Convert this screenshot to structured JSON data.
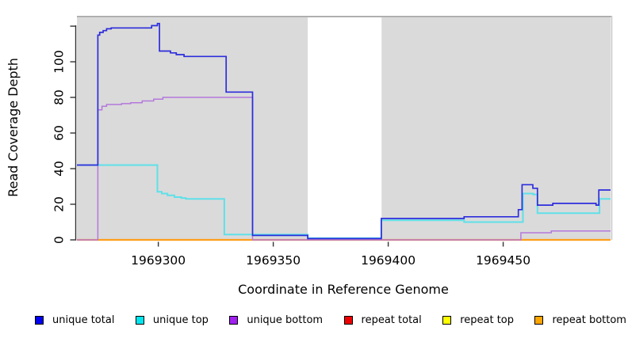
{
  "figure": {
    "xlabel": "Coordinate in Reference Genome",
    "ylabel": "Read Coverage Depth"
  },
  "legend": {
    "items": [
      {
        "label": "unique total",
        "color": "#0000EE"
      },
      {
        "label": "unique top",
        "color": "#00E5EE"
      },
      {
        "label": "unique bottom",
        "color": "#A020F0"
      },
      {
        "label": "repeat total",
        "color": "#EE0000"
      },
      {
        "label": "repeat top",
        "color": "#FFFF00"
      },
      {
        "label": "repeat bottom",
        "color": "#FFA500"
      }
    ]
  },
  "chart_data": {
    "type": "line",
    "subtype": "step-after-coverage",
    "title": "",
    "xlabel": "Coordinate in Reference Genome",
    "ylabel": "Read Coverage Depth",
    "x_axis": {
      "range": [
        1969264.6,
        1969496.7
      ],
      "ticks": [
        1969300,
        1969350,
        1969400,
        1969450
      ]
    },
    "y_axis": {
      "range": [
        0,
        125.8
      ],
      "ticks": [
        0,
        20,
        40,
        60,
        80,
        100,
        120
      ],
      "tick_labels": [
        "0",
        "20",
        "40",
        "60",
        "80",
        "100",
        ""
      ]
    },
    "background": {
      "plot_bg": "#DADADA",
      "plot_bg_top_edge": "#A6A6A6",
      "covered_region": [
        1969264.6,
        1969496.7
      ],
      "gap_region": [
        1969365.0,
        1969397.1
      ],
      "gap_color": "#FFFFFF"
    },
    "series": [
      {
        "name": "repeat total",
        "color": "#E02020",
        "width": 1.5,
        "points": [
          [
            1969264.6,
            0
          ],
          [
            1969496.7,
            0
          ]
        ]
      },
      {
        "name": "repeat top",
        "color": "#F5E800",
        "width": 1.5,
        "points": [
          [
            1969264.6,
            0
          ],
          [
            1969496.7,
            0
          ]
        ]
      },
      {
        "name": "repeat bottom",
        "color": "#FF9F1A",
        "width": 2.2,
        "points": [
          [
            1969264.6,
            0
          ],
          [
            1969496.7,
            0
          ]
        ]
      },
      {
        "name": "unique bottom",
        "color": "#B478DC",
        "width": 1.5,
        "points": [
          [
            1969264.6,
            0
          ],
          [
            1969273.7,
            73
          ],
          [
            1969275.5,
            75
          ],
          [
            1969277.5,
            76
          ],
          [
            1969284,
            76.5
          ],
          [
            1969288,
            77
          ],
          [
            1969293,
            78
          ],
          [
            1969298,
            79
          ],
          [
            1969302,
            80
          ],
          [
            1969341,
            0
          ],
          [
            1969457.7,
            4
          ],
          [
            1969470.9,
            5
          ],
          [
            1969496.7,
            5
          ]
        ]
      },
      {
        "name": "unique top",
        "color": "#5FE0E8",
        "width": 2.0,
        "points": [
          [
            1969264.6,
            42
          ],
          [
            1969299.6,
            27
          ],
          [
            1969301.5,
            26
          ],
          [
            1969304,
            25
          ],
          [
            1969307,
            24
          ],
          [
            1969310,
            23.5
          ],
          [
            1969312,
            23
          ],
          [
            1969328.7,
            3
          ],
          [
            1969365,
            1
          ],
          [
            1969397,
            11
          ],
          [
            1969433,
            10
          ],
          [
            1969458.6,
            26
          ],
          [
            1969463,
            25.5
          ],
          [
            1969464.9,
            15
          ],
          [
            1969491.9,
            23
          ],
          [
            1969496.7,
            23
          ]
        ]
      },
      {
        "name": "unique total",
        "color": "#2D2DDC",
        "width": 1.7,
        "points": [
          [
            1969264.6,
            42
          ],
          [
            1969273.7,
            115
          ],
          [
            1969274.5,
            116.5
          ],
          [
            1969276,
            117.5
          ],
          [
            1969277.5,
            118.5
          ],
          [
            1969279.5,
            119
          ],
          [
            1969297.1,
            120.3
          ],
          [
            1969299.6,
            121.5
          ],
          [
            1969300.5,
            106
          ],
          [
            1969305.3,
            105
          ],
          [
            1969307.8,
            104
          ],
          [
            1969311.2,
            103
          ],
          [
            1969329.5,
            83
          ],
          [
            1969341,
            2.5
          ],
          [
            1969365,
            0.7
          ],
          [
            1969397,
            12
          ],
          [
            1969433,
            13
          ],
          [
            1969456.6,
            17
          ],
          [
            1969458.2,
            31
          ],
          [
            1969462.9,
            29
          ],
          [
            1969464.9,
            19.5
          ],
          [
            1969471.6,
            20.5
          ],
          [
            1969490.4,
            19.5
          ],
          [
            1969491.6,
            28
          ],
          [
            1969496.7,
            28
          ]
        ]
      }
    ]
  }
}
